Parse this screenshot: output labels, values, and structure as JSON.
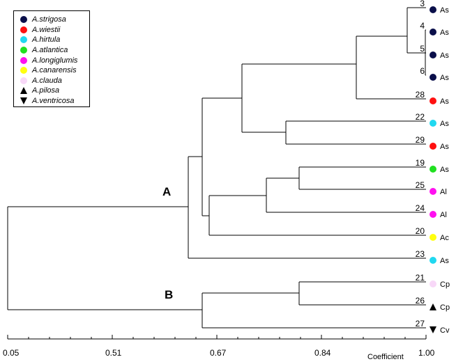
{
  "legend": [
    {
      "name": "A.strigosa",
      "marker": "circle",
      "color": "#0a0f4a"
    },
    {
      "name": "A.wiestii",
      "marker": "circle",
      "color": "#ff1010"
    },
    {
      "name": "A.hirtula",
      "marker": "circle",
      "color": "#20d8f0"
    },
    {
      "name": "A.atlantica",
      "marker": "circle",
      "color": "#20e020"
    },
    {
      "name": "A.longiglumis",
      "marker": "circle",
      "color": "#ff10f0"
    },
    {
      "name": "A.canarensis",
      "marker": "circle",
      "color": "#ffff10"
    },
    {
      "name": "A.clauda",
      "marker": "circle",
      "color": "#f8d8f8"
    },
    {
      "name": "A.pilosa",
      "marker": "triangle-up",
      "color": "#000000"
    },
    {
      "name": "A.ventricosa",
      "marker": "triangle-down",
      "color": "#000000"
    }
  ],
  "leaves": [
    {
      "id": "3",
      "genome": "As",
      "species": 0
    },
    {
      "id": "4",
      "genome": "As",
      "species": 0
    },
    {
      "id": "5",
      "genome": "As",
      "species": 0
    },
    {
      "id": "6",
      "genome": "As",
      "species": 0
    },
    {
      "id": "28",
      "genome": "As",
      "species": 1
    },
    {
      "id": "22",
      "genome": "As",
      "species": 2
    },
    {
      "id": "29",
      "genome": "As",
      "species": 1
    },
    {
      "id": "19",
      "genome": "As",
      "species": 3
    },
    {
      "id": "25",
      "genome": "Al",
      "species": 4
    },
    {
      "id": "24",
      "genome": "Al",
      "species": 4
    },
    {
      "id": "20",
      "genome": "Ac",
      "species": 5
    },
    {
      "id": "23",
      "genome": "As",
      "species": 2
    },
    {
      "id": "21",
      "genome": "Cp",
      "species": 6
    },
    {
      "id": "26",
      "genome": "Cp",
      "species": 7
    },
    {
      "id": "27",
      "genome": "Cv",
      "species": 8
    }
  ],
  "clusters": {
    "a": "A",
    "b": "B"
  },
  "axis": {
    "title": "Coefficient",
    "ticks": [
      "0.05",
      "0.51",
      "0.67",
      "0.84",
      "1.00"
    ]
  }
}
